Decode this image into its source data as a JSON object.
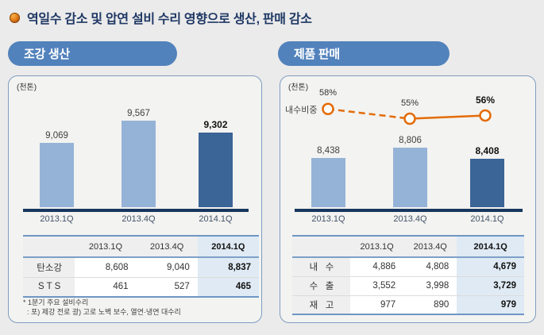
{
  "slide_title": "역일수 감소 및 압연 설비 수리 영향으로 생산, 판매 감소",
  "colors": {
    "title_navy": "#1F3864",
    "pill_blue": "#5282BC",
    "bar_light": "#95B3D7",
    "bar_dark": "#3B6497",
    "axis_navy": "#17365D",
    "line_orange": "#E36C09",
    "table_line_blue": "#6E96C4",
    "highlight_col_bg": "#DFEAF4"
  },
  "left": {
    "header": "조강 생산",
    "unit": "(천톤)",
    "categories": [
      "2013.1Q",
      "2013.4Q",
      "2014.1Q"
    ],
    "bar_labels": [
      "9,069",
      "9,567",
      "9,302"
    ],
    "table": {
      "col_headers": [
        "",
        "2013.1Q",
        "2013.4Q",
        "2014.1Q"
      ],
      "rows": [
        {
          "label": "탄소강",
          "c1": "8,608",
          "c2": "9,040",
          "c3": "8,837"
        },
        {
          "label": "S T S",
          "c1": "461",
          "c2": "527",
          "c3": "465"
        }
      ]
    },
    "footnote_line1": "* 1분기 주요 설비수리",
    "footnote_line2": "  : 포) 제강 전로 광) 고로 노벽 보수, 열연·냉연 대수리"
  },
  "right": {
    "header": "제품 판매",
    "unit": "(천톤)",
    "line_label": "내수비중",
    "pct_labels": [
      "58%",
      "55%",
      "56%"
    ],
    "categories": [
      "2013.1Q",
      "2013.4Q",
      "2014.1Q"
    ],
    "bar_labels": [
      "8,438",
      "8,806",
      "8,408"
    ],
    "table": {
      "col_headers": [
        "",
        "2013.1Q",
        "2013.4Q",
        "2014.1Q"
      ],
      "rows": [
        {
          "label": "내   수",
          "c1": "4,886",
          "c2": "4,808",
          "c3": "4,679"
        },
        {
          "label": "수   출",
          "c1": "3,552",
          "c2": "3,998",
          "c3": "3,729"
        },
        {
          "label": "재   고",
          "c1": "977",
          "c2": "890",
          "c3": "979"
        }
      ]
    }
  },
  "chart_data": [
    {
      "type": "bar",
      "title": "조강 생산",
      "unit": "천톤",
      "categories": [
        "2013.1Q",
        "2013.4Q",
        "2014.1Q"
      ],
      "values": [
        9069,
        9567,
        9302
      ],
      "highlight_index": 2,
      "legend_position": "none",
      "grid": false
    },
    {
      "type": "bar",
      "title": "제품 판매",
      "unit": "천톤",
      "categories": [
        "2013.1Q",
        "2013.4Q",
        "2014.1Q"
      ],
      "values": [
        8438,
        8806,
        8408
      ],
      "highlight_index": 2,
      "legend_position": "none",
      "grid": false,
      "line_overlay": {
        "name": "내수비중",
        "values_pct": [
          58,
          55,
          56
        ],
        "style": "first-segment-dashed, markers circle, color orange"
      }
    },
    {
      "type": "table",
      "title": "조강 생산 내역",
      "columns": [
        "2013.1Q",
        "2013.4Q",
        "2014.1Q"
      ],
      "rows": [
        {
          "label": "탄소강",
          "values": [
            8608,
            9040,
            8837
          ]
        },
        {
          "label": "STS",
          "values": [
            461,
            527,
            465
          ]
        }
      ]
    },
    {
      "type": "table",
      "title": "제품 판매 내역",
      "columns": [
        "2013.1Q",
        "2013.4Q",
        "2014.1Q"
      ],
      "rows": [
        {
          "label": "내수",
          "values": [
            4886,
            4808,
            4679
          ]
        },
        {
          "label": "수출",
          "values": [
            3552,
            3998,
            3729
          ]
        },
        {
          "label": "재고",
          "values": [
            977,
            890,
            979
          ]
        }
      ]
    }
  ]
}
